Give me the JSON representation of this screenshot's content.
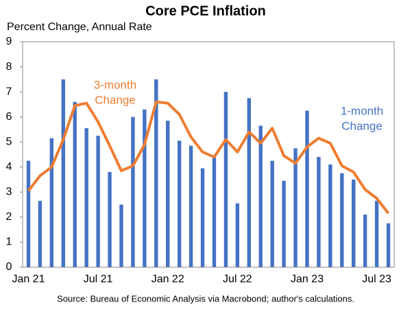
{
  "chart_data": {
    "type": "bar_line",
    "title": "Core PCE Inflation",
    "subtitle": "Percent Change, Annual Rate",
    "source": "Source: Bureau of Economic Analysis via Macrobond; author's calculations.",
    "categories": [
      "Jan 21",
      null,
      null,
      null,
      null,
      null,
      "Jul 21",
      null,
      null,
      null,
      null,
      null,
      "Jan 22",
      null,
      null,
      null,
      null,
      null,
      "Jul 22",
      null,
      null,
      null,
      null,
      null,
      "Jan 23",
      null,
      null,
      null,
      null,
      null,
      "Jul 23",
      null
    ],
    "series": [
      {
        "name": "1-month Change",
        "type": "bar",
        "color": "#4472C4",
        "values": [
          4.25,
          2.65,
          5.15,
          7.5,
          6.6,
          5.55,
          5.25,
          3.8,
          2.5,
          6.0,
          6.3,
          7.5,
          5.85,
          5.05,
          4.85,
          3.95,
          4.4,
          7.0,
          2.55,
          6.75,
          5.65,
          4.25,
          3.45,
          4.75,
          6.25,
          4.4,
          4.1,
          3.75,
          3.5,
          2.1,
          2.65,
          1.75
        ]
      },
      {
        "name": "3-month Change",
        "type": "line",
        "color": "#ED7D31",
        "values": [
          3.05,
          3.65,
          4.0,
          5.1,
          6.45,
          6.55,
          5.8,
          4.85,
          3.85,
          4.05,
          4.9,
          6.6,
          6.55,
          6.1,
          5.2,
          4.6,
          4.4,
          5.1,
          4.6,
          5.4,
          4.95,
          5.55,
          4.45,
          4.15,
          4.8,
          5.15,
          4.95,
          4.05,
          3.8,
          3.1,
          2.75,
          2.15
        ]
      }
    ],
    "annotations": [
      {
        "lines": [
          "3-month",
          "Change"
        ],
        "color": "#ED7D31"
      },
      {
        "lines": [
          "1-month",
          "Change"
        ],
        "color": "#4472C4"
      }
    ],
    "ylim": [
      0,
      9
    ],
    "yticks": [
      0,
      1,
      2,
      3,
      4,
      5,
      6,
      7,
      8,
      9
    ],
    "grid": false
  }
}
